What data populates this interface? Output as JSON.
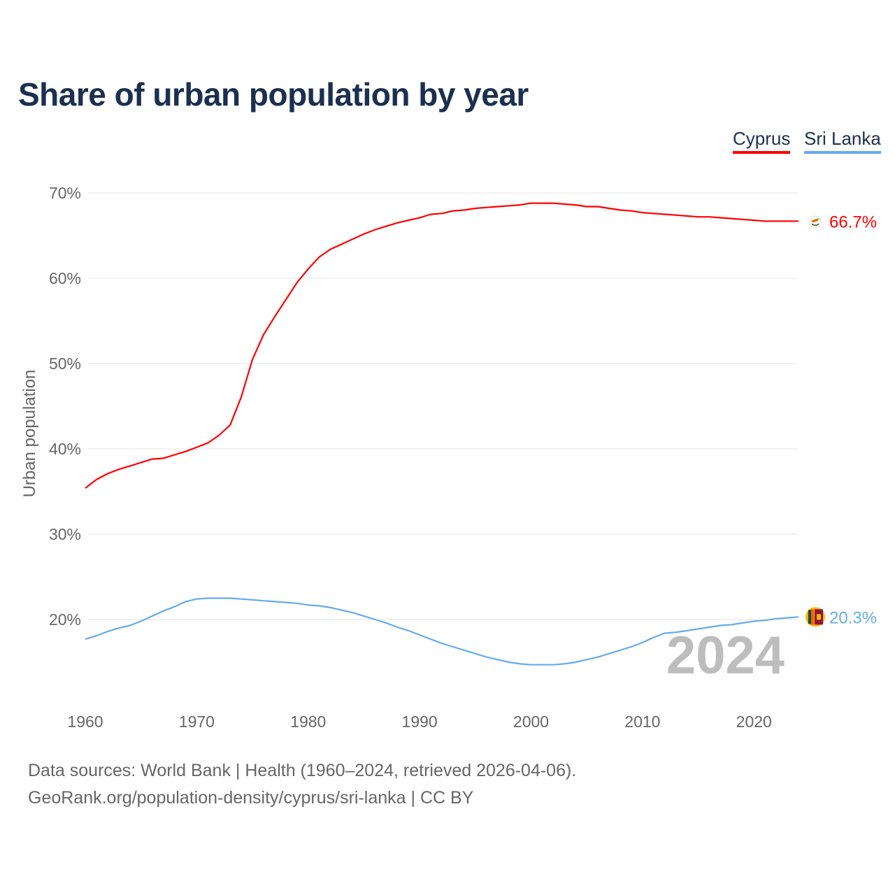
{
  "chart_data": {
    "type": "line",
    "title": "Share of urban population by year",
    "xlabel": "",
    "ylabel": "Urban population",
    "xlim": [
      1960,
      2024
    ],
    "ylim": [
      10,
      72
    ],
    "yticks": [
      20,
      30,
      40,
      50,
      60,
      70
    ],
    "ytick_labels": [
      "20%",
      "30%",
      "40%",
      "50%",
      "60%",
      "70%"
    ],
    "xticks": [
      1960,
      1970,
      1980,
      1990,
      2000,
      2010,
      2020
    ],
    "xtick_labels": [
      "1960",
      "1970",
      "1980",
      "1990",
      "2000",
      "2010",
      "2020"
    ],
    "grid": true,
    "legend_placement": "top-right",
    "year_label": "2024",
    "x": [
      1960,
      1961,
      1962,
      1963,
      1964,
      1965,
      1966,
      1967,
      1968,
      1969,
      1970,
      1971,
      1972,
      1973,
      1974,
      1975,
      1976,
      1977,
      1978,
      1979,
      1980,
      1981,
      1982,
      1983,
      1984,
      1985,
      1986,
      1987,
      1988,
      1989,
      1990,
      1991,
      1992,
      1993,
      1994,
      1995,
      1996,
      1997,
      1998,
      1999,
      2000,
      2001,
      2002,
      2003,
      2004,
      2005,
      2006,
      2007,
      2008,
      2009,
      2010,
      2011,
      2012,
      2013,
      2014,
      2015,
      2016,
      2017,
      2018,
      2019,
      2020,
      2021,
      2022,
      2023,
      2024
    ],
    "series": [
      {
        "name": "Cyprus",
        "color": "#ff0000",
        "end_label": "66.7%",
        "values": [
          35.4,
          36.4,
          37.1,
          37.6,
          38.0,
          38.4,
          38.8,
          38.9,
          39.3,
          39.7,
          40.2,
          40.7,
          41.6,
          42.8,
          46.1,
          50.5,
          53.4,
          55.5,
          57.5,
          59.5,
          61.1,
          62.5,
          63.4,
          64.0,
          64.6,
          65.2,
          65.7,
          66.1,
          66.5,
          66.8,
          67.1,
          67.5,
          67.6,
          67.9,
          68.0,
          68.2,
          68.3,
          68.4,
          68.5,
          68.6,
          68.8,
          68.8,
          68.8,
          68.7,
          68.6,
          68.4,
          68.4,
          68.2,
          68.0,
          67.9,
          67.7,
          67.6,
          67.5,
          67.4,
          67.3,
          67.2,
          67.2,
          67.1,
          67.0,
          66.9,
          66.8,
          66.7,
          66.7,
          66.7,
          66.7
        ]
      },
      {
        "name": "Sri Lanka",
        "color": "#66aaee",
        "end_label": "20.3%",
        "values": [
          17.7,
          18.1,
          18.6,
          19.0,
          19.3,
          19.8,
          20.4,
          21.0,
          21.5,
          22.1,
          22.4,
          22.5,
          22.5,
          22.5,
          22.4,
          22.3,
          22.2,
          22.1,
          22.0,
          21.9,
          21.7,
          21.6,
          21.4,
          21.1,
          20.8,
          20.4,
          20.0,
          19.6,
          19.1,
          18.7,
          18.2,
          17.7,
          17.2,
          16.8,
          16.4,
          16.0,
          15.6,
          15.3,
          15.0,
          14.8,
          14.7,
          14.7,
          14.7,
          14.8,
          15.0,
          15.3,
          15.6,
          16.0,
          16.4,
          16.8,
          17.3,
          17.9,
          18.4,
          18.5,
          18.7,
          18.9,
          19.1,
          19.3,
          19.4,
          19.6,
          19.8,
          19.9,
          20.1,
          20.2,
          20.3
        ]
      }
    ]
  },
  "legend": {
    "items": [
      "Cyprus",
      "Sri Lanka"
    ]
  },
  "footer": {
    "line1": "Data sources: World Bank | Health (1960–2024, retrieved 2026-04-06).",
    "line2": "GeoRank.org/population-density/cyprus/sri-lanka | CC BY"
  }
}
